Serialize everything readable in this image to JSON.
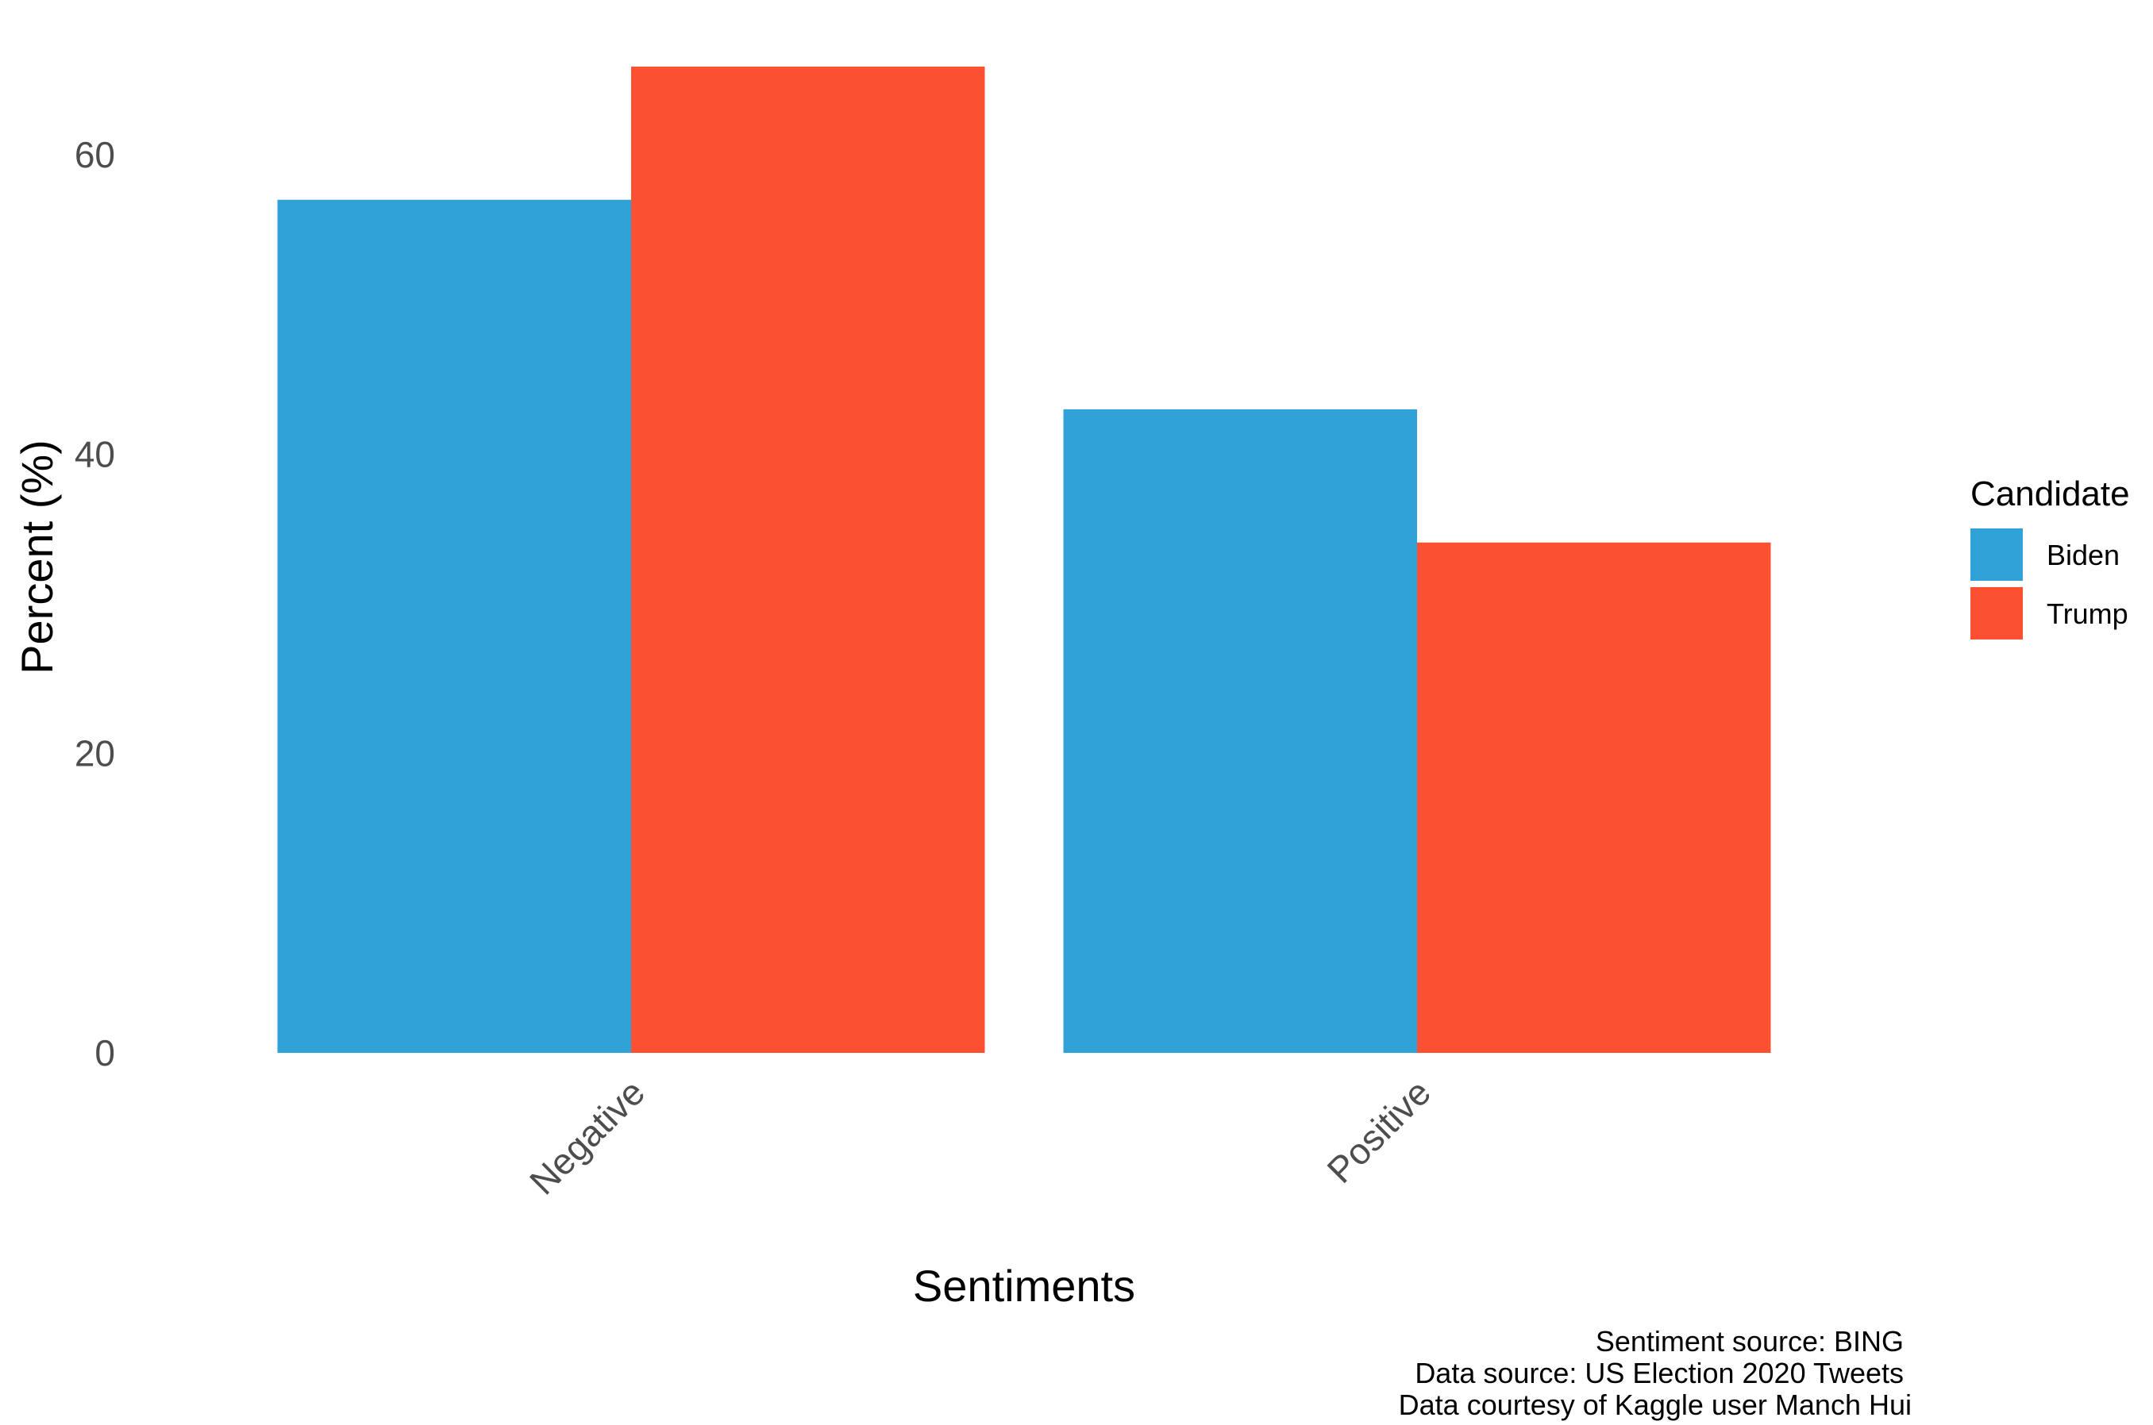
{
  "chart_data": {
    "type": "bar",
    "categories": [
      "Negative",
      "Positive"
    ],
    "series": [
      {
        "name": "Biden",
        "values": [
          57.0,
          43.0
        ],
        "color": "#30A2D8"
      },
      {
        "name": "Trump",
        "values": [
          65.9,
          34.1
        ],
        "color": "#FC5033"
      }
    ],
    "xlabel": "Sentiments",
    "ylabel": "Percent (%)",
    "ylim": [
      0,
      66
    ],
    "yticks": [
      0,
      20,
      40,
      60
    ],
    "grid": false,
    "legend": {
      "title": "Candidate",
      "position": "right"
    },
    "caption": [
      "Sentiment source: BING",
      "Data source: US Election 2020 Tweets",
      "Data courtesy of Kaggle user Manch Hui"
    ]
  }
}
